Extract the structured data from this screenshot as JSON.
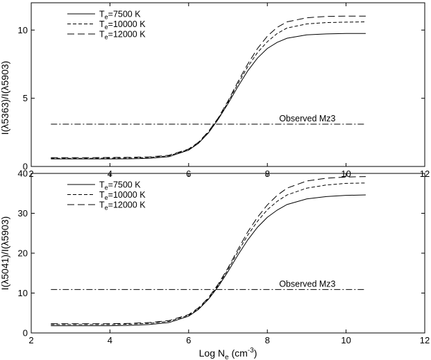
{
  "chart_data": [
    {
      "type": "line",
      "xlabel": "",
      "ylabel_parts": [
        "I(",
        "λ",
        "5363)/I(",
        "λ",
        "5903)"
      ],
      "xlim": [
        2,
        12
      ],
      "ylim": [
        0,
        12
      ],
      "xticks": [
        2,
        4,
        6,
        8,
        10,
        12
      ],
      "yticks": [
        0,
        5,
        10
      ],
      "legend": {
        "placement": "top-left",
        "entries": [
          {
            "base": "T",
            "sub": "e",
            "rest": "=7500 K",
            "style": "solid"
          },
          {
            "base": "T",
            "sub": "e",
            "rest": "=10000 K",
            "style": "dotted-dash"
          },
          {
            "base": "T",
            "sub": "e",
            "rest": "=12000 K",
            "style": "long-dash"
          }
        ]
      },
      "x": [
        2.5,
        3,
        3.5,
        4,
        4.5,
        5,
        5.5,
        6,
        6.25,
        6.5,
        6.75,
        7,
        7.25,
        7.5,
        7.75,
        8,
        8.25,
        8.5,
        9,
        9.5,
        10,
        10.5
      ],
      "series": [
        {
          "name": "Te=7500 K",
          "style": "solid",
          "values": [
            0.55,
            0.55,
            0.55,
            0.55,
            0.56,
            0.6,
            0.72,
            1.2,
            1.7,
            2.45,
            3.45,
            4.6,
            5.85,
            7.0,
            7.95,
            8.65,
            9.1,
            9.4,
            9.65,
            9.72,
            9.75,
            9.75
          ]
        },
        {
          "name": "Te=10000 K",
          "style": "dotted-dash",
          "values": [
            0.6,
            0.6,
            0.6,
            0.61,
            0.62,
            0.66,
            0.78,
            1.25,
            1.75,
            2.5,
            3.5,
            4.7,
            6.05,
            7.3,
            8.35,
            9.15,
            9.75,
            10.15,
            10.45,
            10.55,
            10.58,
            10.6
          ]
        },
        {
          "name": "Te=12000 K",
          "style": "long-dash",
          "values": [
            0.65,
            0.65,
            0.65,
            0.66,
            0.67,
            0.7,
            0.82,
            1.28,
            1.78,
            2.55,
            3.55,
            4.8,
            6.2,
            7.5,
            8.65,
            9.55,
            10.2,
            10.6,
            10.9,
            11.0,
            11.02,
            11.02
          ]
        }
      ],
      "observed": {
        "label": "Observed Mz3",
        "value": 3.1,
        "x_range": [
          2.5,
          10.5
        ],
        "style": "dash-dot"
      }
    },
    {
      "type": "line",
      "xlabel_parts": [
        "Log N",
        "e",
        " (cm",
        "-3",
        ")"
      ],
      "ylabel_parts": [
        "I(",
        "λ",
        "5041)/I(",
        "λ",
        "5903)"
      ],
      "xlim": [
        2,
        12
      ],
      "ylim": [
        0,
        40
      ],
      "xticks": [
        2,
        4,
        6,
        8,
        10,
        12
      ],
      "yticks": [
        0,
        10,
        20,
        30,
        40
      ],
      "legend": {
        "placement": "top-left",
        "entries": [
          {
            "base": "T",
            "sub": "e",
            "rest": "=7500 K",
            "style": "solid"
          },
          {
            "base": "T",
            "sub": "e",
            "rest": "=10000 K",
            "style": "dotted-dash"
          },
          {
            "base": "T",
            "sub": "e",
            "rest": "=12000 K",
            "style": "long-dash"
          }
        ]
      },
      "x": [
        2.5,
        3,
        3.5,
        4,
        4.5,
        5,
        5.5,
        6,
        6.25,
        6.5,
        6.75,
        7,
        7.25,
        7.5,
        7.75,
        8,
        8.25,
        8.5,
        9,
        9.5,
        10,
        10.5
      ],
      "series": [
        {
          "name": "Te=7500 K",
          "style": "solid",
          "values": [
            1.8,
            1.8,
            1.8,
            1.8,
            1.9,
            2.1,
            2.6,
            4.2,
            5.9,
            8.4,
            11.6,
            15.4,
            19.5,
            23.3,
            26.5,
            29.0,
            30.8,
            32.2,
            33.6,
            34.2,
            34.5,
            34.6
          ]
        },
        {
          "name": "Te=10000 K",
          "style": "dotted-dash",
          "values": [
            2.1,
            2.1,
            2.1,
            2.1,
            2.2,
            2.4,
            2.9,
            4.4,
            6.1,
            8.6,
            11.9,
            15.9,
            20.3,
            24.5,
            28.0,
            30.9,
            33.0,
            34.6,
            36.3,
            37.1,
            37.5,
            37.6
          ]
        },
        {
          "name": "Te=12000 K",
          "style": "long-dash",
          "values": [
            2.3,
            2.3,
            2.3,
            2.3,
            2.4,
            2.6,
            3.1,
            4.6,
            6.3,
            8.8,
            12.2,
            16.3,
            20.9,
            25.3,
            29.0,
            32.1,
            34.5,
            36.3,
            38.1,
            38.8,
            39.1,
            39.2
          ]
        }
      ],
      "observed": {
        "label": "Observed Mz3",
        "value": 10.9,
        "x_range": [
          2.5,
          10.5
        ],
        "style": "dash-dot"
      }
    }
  ]
}
